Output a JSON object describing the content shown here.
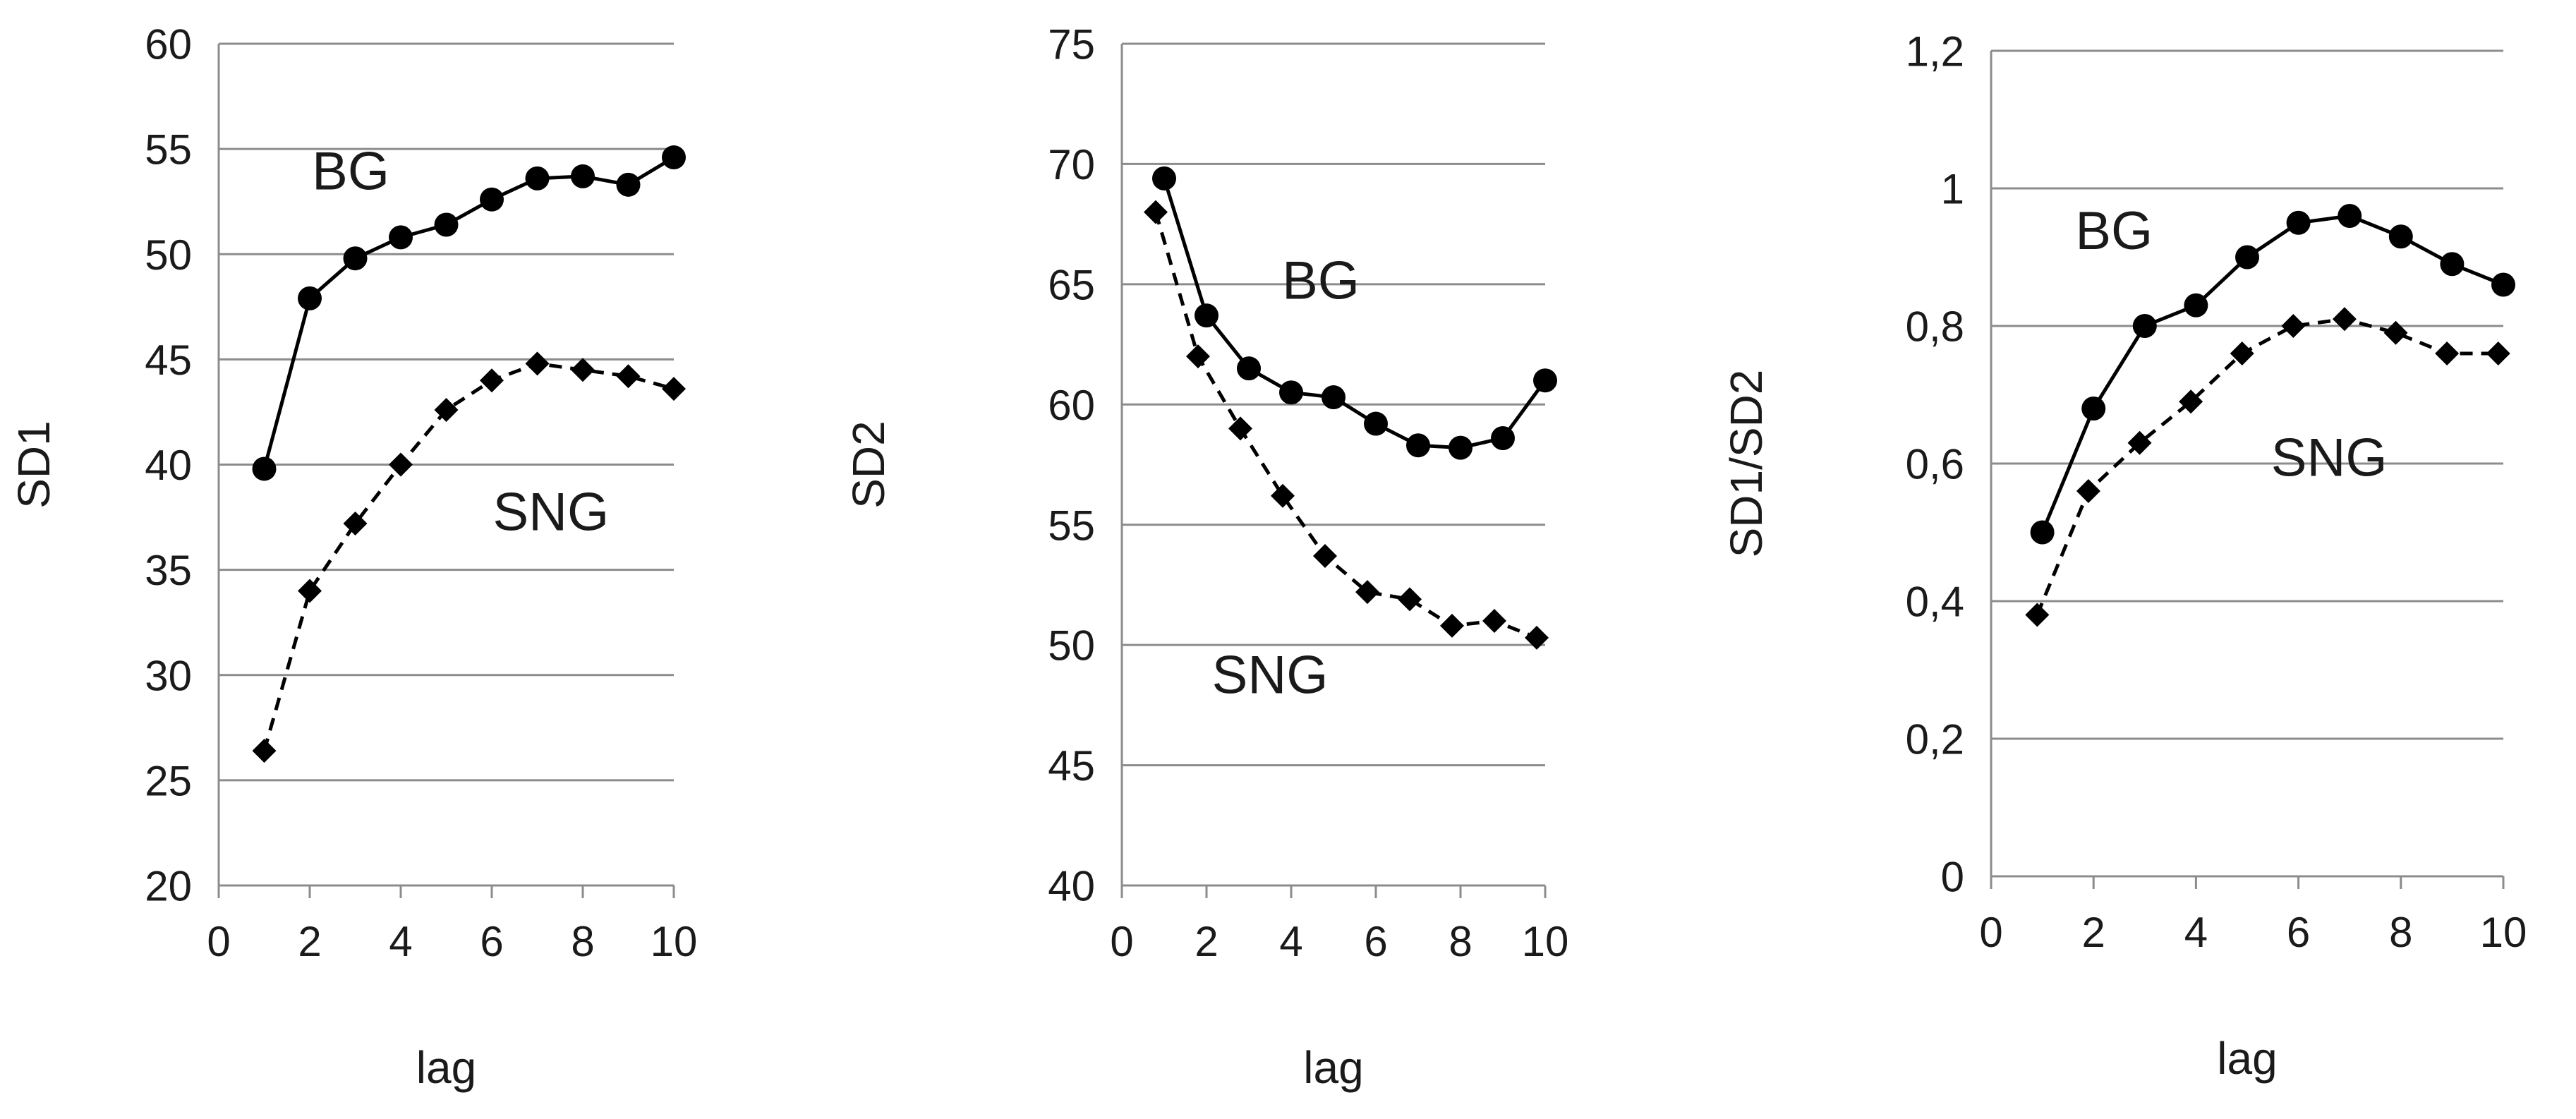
{
  "chart_data": [
    {
      "type": "line",
      "xlabel": "lag",
      "ylabel": "SD1",
      "xlim": [
        0,
        10
      ],
      "ylim": [
        20,
        60
      ],
      "xticks": [
        "0",
        "2",
        "4",
        "6",
        "8",
        "10"
      ],
      "yticks": [
        "20",
        "25",
        "30",
        "35",
        "40",
        "45",
        "50",
        "55",
        "60"
      ],
      "grid": "horizontal",
      "legend": "none",
      "series": [
        {
          "name": "BG",
          "line": "solid",
          "marker": "circle",
          "x": [
            1,
            2,
            3,
            4,
            5,
            6,
            7,
            8,
            9,
            10
          ],
          "values": [
            39.8,
            47.9,
            49.8,
            50.8,
            51.4,
            52.6,
            53.6,
            53.7,
            53.3,
            54.6
          ]
        },
        {
          "name": "SNG",
          "line": "dashed",
          "marker": "diamond",
          "x": [
            1,
            2,
            3,
            4,
            5,
            6,
            7,
            8,
            9,
            10
          ],
          "values": [
            26.4,
            34.0,
            37.2,
            40.0,
            42.6,
            44.0,
            44.8,
            44.5,
            44.2,
            43.6
          ]
        }
      ],
      "annotations": [
        {
          "text": "BG",
          "x": 2.9,
          "y": 54.0
        },
        {
          "text": "SNG",
          "x": 7.3,
          "y": 37.8
        }
      ]
    },
    {
      "type": "line",
      "xlabel": "lag",
      "ylabel": "SD2",
      "xlim": [
        0,
        10
      ],
      "ylim": [
        40,
        75
      ],
      "xticks": [
        "0",
        "2",
        "4",
        "6",
        "8",
        "10"
      ],
      "yticks": [
        "40",
        "45",
        "50",
        "55",
        "60",
        "65",
        "70",
        "75"
      ],
      "grid": "horizontal",
      "legend": "none",
      "series": [
        {
          "name": "BG",
          "line": "solid",
          "marker": "circle",
          "x": [
            1,
            2,
            3,
            4,
            5,
            6,
            7,
            8,
            9,
            10
          ],
          "values": [
            69.4,
            63.7,
            61.5,
            60.5,
            60.3,
            59.2,
            58.3,
            58.2,
            58.6,
            61.0
          ]
        },
        {
          "name": "SNG",
          "line": "dashed",
          "marker": "diamond",
          "x": [
            0.8,
            1.8,
            2.8,
            3.8,
            4.8,
            5.8,
            6.8,
            7.8,
            8.8,
            9.8
          ],
          "values": [
            68.0,
            62.0,
            59.0,
            56.2,
            53.7,
            52.2,
            51.9,
            50.8,
            51.0,
            50.3
          ]
        }
      ],
      "annotations": [
        {
          "text": "BG",
          "x": 4.7,
          "y": 65.2
        },
        {
          "text": "SNG",
          "x": 3.5,
          "y": 48.8
        }
      ]
    },
    {
      "type": "line",
      "xlabel": "lag",
      "ylabel": "SD1/SD2",
      "xlim": [
        0,
        10
      ],
      "ylim": [
        0,
        1.2
      ],
      "xticks": [
        "0",
        "2",
        "4",
        "6",
        "8",
        "10"
      ],
      "yticks": [
        "0",
        "0,2",
        "0,4",
        "0,6",
        "0,8",
        "1",
        "1,2"
      ],
      "grid": "horizontal",
      "legend": "none",
      "series": [
        {
          "name": "BG",
          "line": "solid",
          "marker": "circle",
          "x": [
            1,
            2,
            3,
            4,
            5,
            6,
            7,
            8,
            9,
            10
          ],
          "values": [
            0.5,
            0.68,
            0.8,
            0.83,
            0.9,
            0.95,
            0.96,
            0.93,
            0.89,
            0.86
          ]
        },
        {
          "name": "SNG",
          "line": "dashed",
          "marker": "diamond",
          "x": [
            0.9,
            1.9,
            2.9,
            3.9,
            4.9,
            5.9,
            6.9,
            7.9,
            8.9,
            9.9
          ],
          "values": [
            0.38,
            0.56,
            0.63,
            0.69,
            0.76,
            0.8,
            0.81,
            0.79,
            0.76,
            0.76
          ]
        }
      ],
      "annotations": [
        {
          "text": "BG",
          "x": 2.4,
          "y": 0.94
        },
        {
          "text": "SNG",
          "x": 6.6,
          "y": 0.61
        }
      ]
    }
  ]
}
